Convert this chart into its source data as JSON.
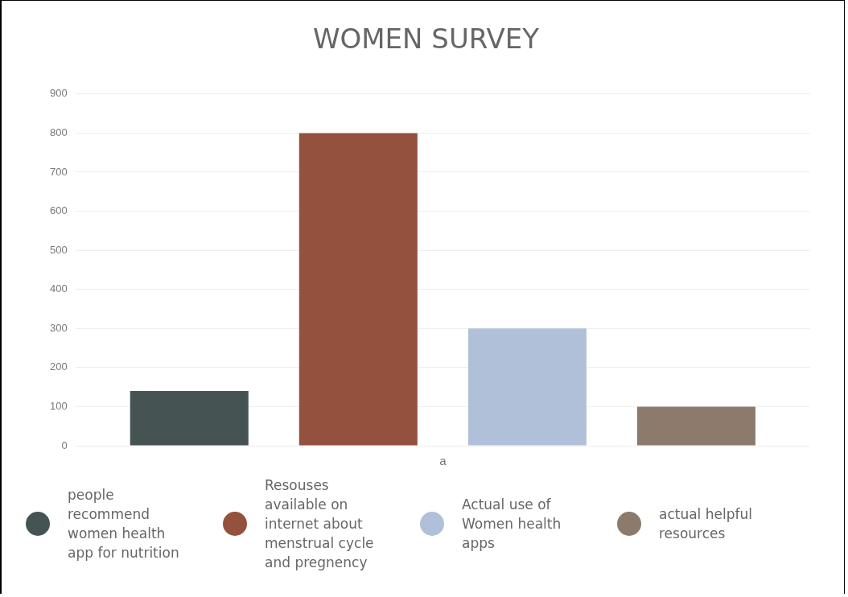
{
  "chart_data": {
    "type": "bar",
    "title": "WOMEN SURVEY",
    "categories": [
      "a"
    ],
    "series": [
      {
        "name": "people recommend women health app for nutrition",
        "color": "#455453",
        "values": [
          140
        ]
      },
      {
        "name": "Resouses available on internet about menstrual cycle and pregnency",
        "color": "#94513d",
        "values": [
          800
        ]
      },
      {
        "name": "Actual use of Women health apps",
        "color": "#b1c0d9",
        "values": [
          300
        ]
      },
      {
        "name": "actual helpful resources",
        "color": "#8c7b6c",
        "values": [
          100
        ]
      }
    ],
    "ylim": [
      0,
      900
    ],
    "yticks": [
      0,
      100,
      200,
      300,
      400,
      500,
      600,
      700,
      800,
      900
    ],
    "grid": "y",
    "legend": "bottom"
  }
}
